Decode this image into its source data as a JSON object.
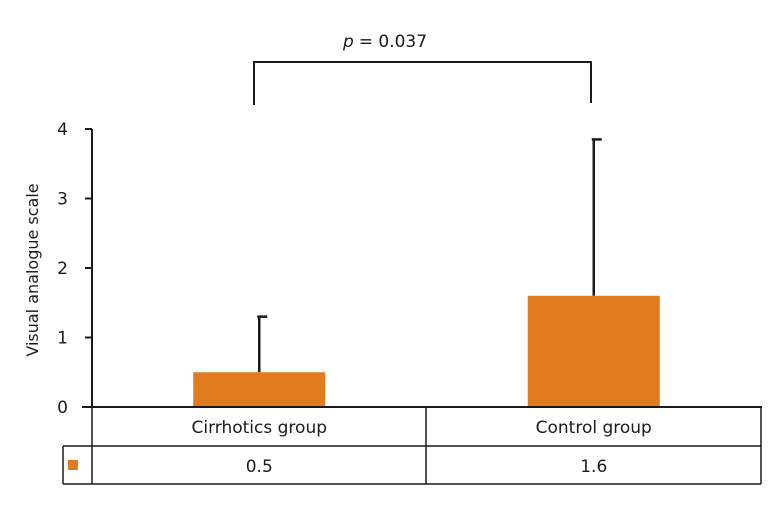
{
  "chart_data": {
    "type": "bar",
    "categories": [
      "Cirrhotics group",
      "Control group"
    ],
    "values": [
      0.5,
      1.6
    ],
    "error_upper": [
      1.3,
      3.85
    ],
    "ylabel": "Visual analogue scale",
    "xlabel": "",
    "ylim": [
      0,
      4
    ],
    "yticks": [
      "0",
      "1",
      "2",
      "3",
      "4"
    ],
    "bar_color": "#E07B1F",
    "grid": false,
    "annotation": {
      "p_symbol": "p",
      "p_text": "= 0.037"
    },
    "data_table": {
      "row_values": [
        "0.5",
        "1.6"
      ]
    }
  }
}
